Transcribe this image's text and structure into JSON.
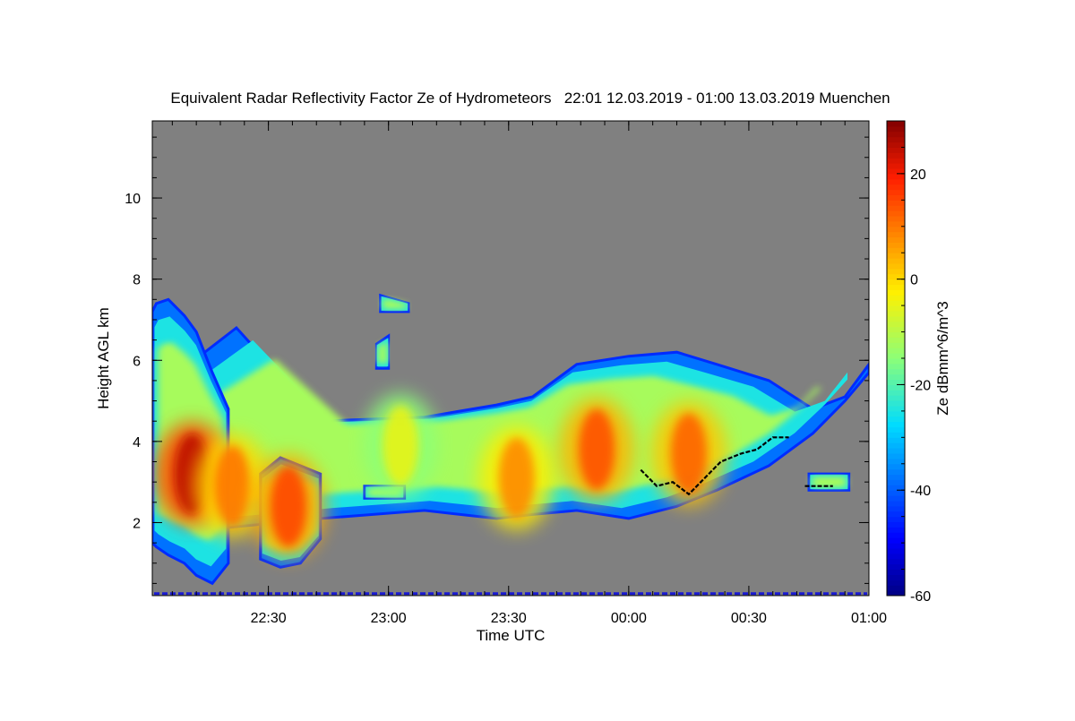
{
  "chart_data": {
    "type": "heatmap",
    "title": "Equivalent Radar Reflectivity Factor Ze of Hydrometeors   22:01 12.03.2019 - 01:00 13.03.2019 Muenchen",
    "xlabel": "Time UTC",
    "ylabel": "Height AGL km",
    "colorbar_label": "Ze dBmm^6/m^3",
    "x_unit": "minutes",
    "x_range_labels": [
      "22:01",
      "01:00"
    ],
    "xlim_minutes": [
      1321,
      1500
    ],
    "x_ticks": [
      {
        "minutes": 1350,
        "label": "22:30"
      },
      {
        "minutes": 1380,
        "label": "23:00"
      },
      {
        "minutes": 1410,
        "label": "23:30"
      },
      {
        "minutes": 1440,
        "label": "00:00"
      },
      {
        "minutes": 1470,
        "label": "00:30"
      },
      {
        "minutes": 1500,
        "label": "01:00"
      }
    ],
    "ylim": [
      0.2,
      11.9
    ],
    "y_ticks": [
      2,
      4,
      6,
      8,
      10
    ],
    "colorbar_range": [
      -60,
      30
    ],
    "colorbar_ticks": [
      -60,
      -40,
      -20,
      0,
      20
    ],
    "background_color": "#808080",
    "echo_regions": [
      {
        "name": "main-layer",
        "min": [
          1321,
          1342,
          1363,
          1389,
          1407,
          1416,
          1427,
          1440,
          1452,
          1462,
          1475,
          1486,
          1494,
          1500
        ],
        "top_km": [
          5.2,
          6.8,
          4.5,
          4.6,
          4.9,
          5.1,
          5.9,
          6.1,
          6.2,
          5.9,
          5.5,
          4.8,
          5.1,
          5.9
        ],
        "base_km": [
          1.7,
          1.9,
          2.1,
          2.3,
          2.1,
          2.2,
          2.3,
          2.1,
          2.4,
          2.8,
          3.4,
          4.2,
          5.0,
          5.7
        ]
      },
      {
        "name": "western-plume",
        "min": [
          1321,
          1322,
          1325,
          1329,
          1332,
          1336,
          1340
        ],
        "top_km": [
          7.2,
          7.4,
          7.5,
          7.1,
          6.7,
          5.7,
          4.8
        ],
        "base_km": [
          1.5,
          1.4,
          1.2,
          1.0,
          0.7,
          0.5,
          1.0
        ]
      },
      {
        "name": "convective-cells",
        "min": [
          1348,
          1353,
          1358,
          1363
        ],
        "top_km": [
          3.2,
          3.6,
          3.4,
          3.2
        ],
        "base_km": [
          1.1,
          0.9,
          1.0,
          1.6
        ]
      },
      {
        "name": "fragment-1",
        "min": [
          1378,
          1385
        ],
        "top_km": [
          7.6,
          7.4
        ],
        "base_km": [
          7.2,
          7.2
        ]
      },
      {
        "name": "fragment-2",
        "min": [
          1377,
          1380
        ],
        "top_km": [
          6.4,
          6.6
        ],
        "base_km": [
          5.8,
          5.8
        ]
      },
      {
        "name": "fragment-3",
        "min": [
          1374,
          1384
        ],
        "top_km": [
          2.9,
          2.9
        ],
        "base_km": [
          2.6,
          2.6
        ]
      },
      {
        "name": "fragment-4",
        "min": [
          1485,
          1495
        ],
        "top_km": [
          3.2,
          3.2
        ],
        "base_km": [
          2.8,
          2.8
        ]
      }
    ],
    "cores": [
      {
        "min": 1331,
        "km": 3.2,
        "dbz": 25
      },
      {
        "min": 1341,
        "km": 2.9,
        "dbz": 10
      },
      {
        "min": 1355,
        "km": 2.4,
        "dbz": 15
      },
      {
        "min": 1412,
        "km": 3.1,
        "dbz": 8
      },
      {
        "min": 1432,
        "km": 3.8,
        "dbz": 14
      },
      {
        "min": 1455,
        "km": 3.7,
        "dbz": 12
      },
      {
        "min": 1383,
        "km": 3.9,
        "dbz": -5
      }
    ],
    "black_line": [
      {
        "min": 1443,
        "km": 3.3
      },
      {
        "min": 1447,
        "km": 2.9
      },
      {
        "min": 1451,
        "km": 3.0
      },
      {
        "min": 1455,
        "km": 2.7
      },
      {
        "min": 1459,
        "km": 3.1
      },
      {
        "min": 1463,
        "km": 3.5
      },
      {
        "min": 1468,
        "km": 3.7
      },
      {
        "min": 1472,
        "km": 3.8
      },
      {
        "min": 1476,
        "km": 4.1
      },
      {
        "min": 1480,
        "km": 4.1
      }
    ],
    "black_line_2": [
      {
        "min": 1484,
        "km": 2.9
      },
      {
        "min": 1491,
        "km": 2.9
      }
    ]
  }
}
